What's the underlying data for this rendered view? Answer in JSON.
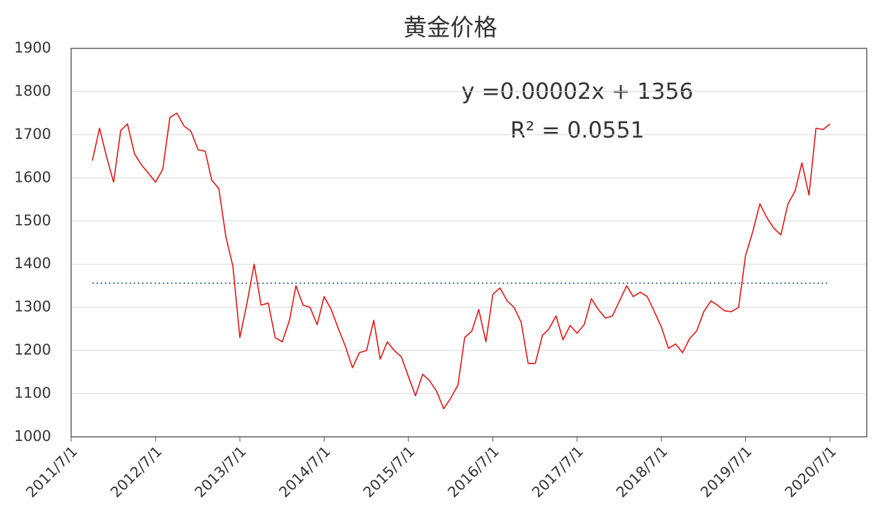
{
  "chart_data": {
    "type": "line",
    "title": "黄金价格",
    "annotations": [
      "y =0.00002x + 1356",
      "R² = 0.0551"
    ],
    "x": [
      "2011/10/1",
      "2011/11/1",
      "2011/12/1",
      "2012/1/1",
      "2012/2/1",
      "2012/3/1",
      "2012/4/1",
      "2012/5/1",
      "2012/6/1",
      "2012/7/1",
      "2012/8/1",
      "2012/9/1",
      "2012/10/1",
      "2012/11/1",
      "2012/12/1",
      "2013/1/1",
      "2013/2/1",
      "2013/3/1",
      "2013/4/1",
      "2013/5/1",
      "2013/6/1",
      "2013/7/1",
      "2013/8/1",
      "2013/9/1",
      "2013/10/1",
      "2013/11/1",
      "2013/12/1",
      "2014/1/1",
      "2014/2/1",
      "2014/3/1",
      "2014/4/1",
      "2014/5/1",
      "2014/6/1",
      "2014/7/1",
      "2014/8/1",
      "2014/9/1",
      "2014/10/1",
      "2014/11/1",
      "2014/12/1",
      "2015/1/1",
      "2015/2/1",
      "2015/3/1",
      "2015/4/1",
      "2015/5/1",
      "2015/6/1",
      "2015/7/1",
      "2015/8/1",
      "2015/9/1",
      "2015/10/1",
      "2015/11/1",
      "2015/12/1",
      "2016/1/1",
      "2016/2/1",
      "2016/3/1",
      "2016/4/1",
      "2016/5/1",
      "2016/6/1",
      "2016/7/1",
      "2016/8/1",
      "2016/9/1",
      "2016/10/1",
      "2016/11/1",
      "2016/12/1",
      "2017/1/1",
      "2017/2/1",
      "2017/3/1",
      "2017/4/1",
      "2017/5/1",
      "2017/6/1",
      "2017/7/1",
      "2017/8/1",
      "2017/9/1",
      "2017/10/1",
      "2017/11/1",
      "2017/12/1",
      "2018/1/1",
      "2018/2/1",
      "2018/3/1",
      "2018/4/1",
      "2018/5/1",
      "2018/6/1",
      "2018/7/1",
      "2018/8/1",
      "2018/9/1",
      "2018/10/1",
      "2018/11/1",
      "2018/12/1",
      "2019/1/1",
      "2019/2/1",
      "2019/3/1",
      "2019/4/1",
      "2019/5/1",
      "2019/6/1",
      "2019/7/1",
      "2019/8/1",
      "2019/9/1",
      "2019/10/1",
      "2019/11/1",
      "2019/12/1",
      "2020/1/1",
      "2020/2/1",
      "2020/3/1",
      "2020/4/1",
      "2020/5/1",
      "2020/6/1",
      "2020/7/1"
    ],
    "series": [
      {
        "color": "#e01010",
        "values": [
          1640,
          1715,
          1650,
          1590,
          1710,
          1725,
          1655,
          1630,
          1610,
          1590,
          1620,
          1740,
          1750,
          1720,
          1708,
          1665,
          1662,
          1595,
          1575,
          1465,
          1395,
          1230,
          1310,
          1400,
          1305,
          1310,
          1230,
          1220,
          1270,
          1350,
          1305,
          1300,
          1260,
          1325,
          1295,
          1250,
          1210,
          1160,
          1195,
          1200,
          1270,
          1180,
          1220,
          1200,
          1185,
          1140,
          1095,
          1145,
          1130,
          1105,
          1065,
          1090,
          1120,
          1230,
          1245,
          1295,
          1220,
          1330,
          1345,
          1315,
          1300,
          1265,
          1170,
          1170,
          1235,
          1250,
          1280,
          1225,
          1258,
          1240,
          1260,
          1320,
          1295,
          1275,
          1280,
          1315,
          1350,
          1325,
          1335,
          1325,
          1290,
          1255,
          1205,
          1215,
          1195,
          1228,
          1245,
          1290,
          1315,
          1305,
          1292,
          1290,
          1300,
          1420,
          1475,
          1540,
          1508,
          1483,
          1468,
          1540,
          1570,
          1635,
          1560,
          1715,
          1712,
          1725
        ]
      }
    ],
    "trend_line": {
      "x": [
        "2011/10/1",
        "2020/7/1"
      ],
      "values": [
        1356,
        1356
      ],
      "color": "#2a5c8a"
    },
    "xlim": [
      "2011/7/1",
      "2020/12/7"
    ],
    "xticks": [
      "2011/7/1",
      "2012/7/1",
      "2013/7/1",
      "2014/7/1",
      "2015/7/1",
      "2016/7/1",
      "2017/7/1",
      "2018/7/1",
      "2019/7/1",
      "2020/7/1"
    ],
    "ylim": [
      1000,
      1900
    ],
    "yticks": [
      1000,
      1100,
      1200,
      1300,
      1400,
      1500,
      1600,
      1700,
      1800,
      1900
    ],
    "grid": true
  }
}
